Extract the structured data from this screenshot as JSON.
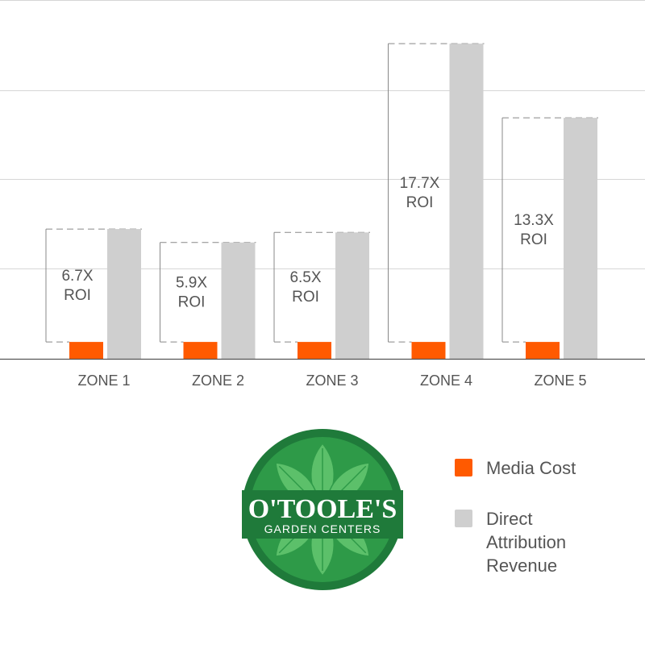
{
  "chart_data": {
    "type": "bar",
    "categories": [
      "ZONE 1",
      "ZONE 2",
      "ZONE 3",
      "ZONE 4",
      "ZONE 5"
    ],
    "series": [
      {
        "name": "Media Cost",
        "color": "#ff5a00",
        "values": [
          1,
          1,
          1,
          1,
          1
        ]
      },
      {
        "name": "Direct Attribution Revenue",
        "color": "#cfcfcf",
        "values": [
          7.7,
          6.9,
          7.5,
          18.7,
          14.3
        ]
      }
    ],
    "roi_labels": [
      [
        "6.7X",
        "ROI"
      ],
      [
        "5.9X",
        "ROI"
      ],
      [
        "6.5X",
        "ROI"
      ],
      [
        "17.7X",
        "ROI"
      ],
      [
        "13.3X",
        "ROI"
      ]
    ],
    "ylim": [
      0,
      20
    ],
    "grid": true,
    "title": "",
    "xlabel": "",
    "ylabel": ""
  },
  "legend": {
    "items": [
      {
        "label": "Media Cost",
        "color": "#ff5a00"
      },
      {
        "label": "Direct Attribution Revenue",
        "color": "#cfcfcf"
      }
    ]
  },
  "logo": {
    "name": "O'TOOLE'S",
    "subtitle": "GARDEN CENTERS",
    "colors": {
      "ring": "#1f7a3a",
      "inner": "#2e9a48",
      "leaf": "#5cc06a"
    }
  }
}
